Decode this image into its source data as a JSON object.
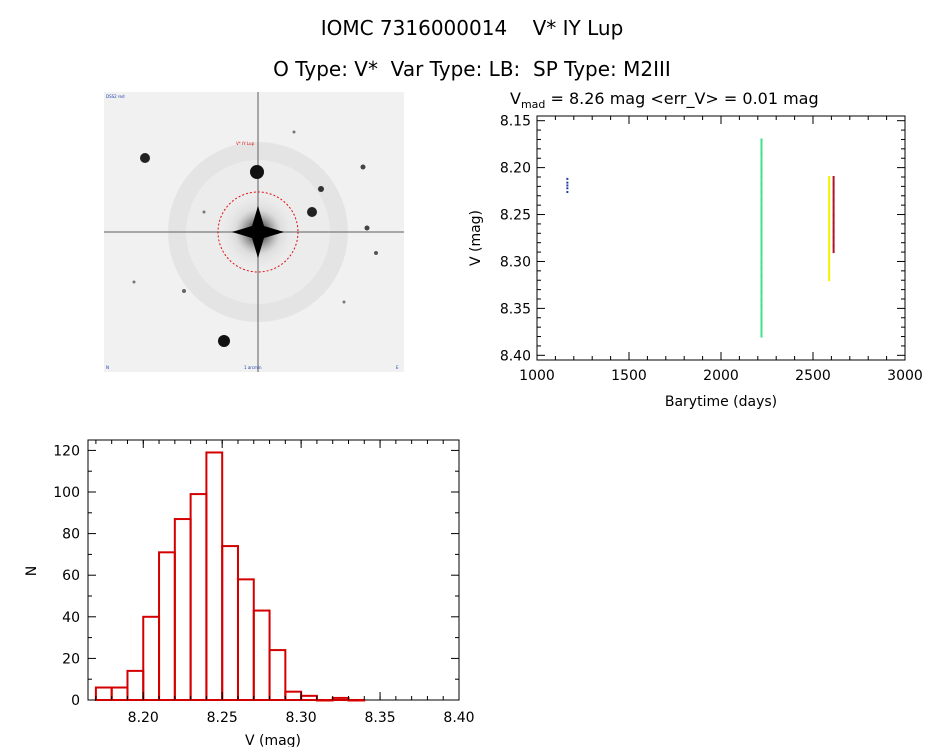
{
  "header": {
    "title_line1": "IOMC 7316000014    V* IY Lup",
    "title_line2": "O Type: V*  Var Type: LB:  SP Type: M2III"
  },
  "image_panel": {
    "label_top_left": "DSS2 red",
    "marker_label": "V* IY Lup",
    "label_bottom_left": "N",
    "label_bottom_center": "1 arcmin",
    "label_bottom_right": "E"
  },
  "lightcurve": {
    "title_prefix": "V",
    "title_sub": "mad",
    "title_rest": " = 8.26 mag <err_V> = 0.01 mag",
    "xlabel": "Barytime (days)",
    "ylabel": "V (mag)",
    "x_ticks": [
      "1000",
      "1500",
      "2000",
      "2500",
      "3000"
    ],
    "y_ticks": [
      "8.15",
      "8.20",
      "8.25",
      "8.30",
      "8.35",
      "8.40"
    ]
  },
  "histogram": {
    "xlabel": "V (mag)",
    "ylabel": "N",
    "x_ticks": [
      "8.20",
      "8.25",
      "8.30",
      "8.35",
      "8.40"
    ],
    "y_ticks": [
      "0",
      "20",
      "40",
      "60",
      "80",
      "100",
      "120"
    ]
  },
  "colors": {
    "axis": "#000000",
    "hist_bar": "#d40000",
    "marker_circle": "#e01010",
    "series_blue": "#1f3fa8",
    "series_green": "#3ce08a",
    "series_yellow": "#f2f200",
    "series_red": "#b01020"
  },
  "chart_data": [
    {
      "type": "scatter",
      "title": "Vmad = 8.26 mag <err_V> = 0.01 mag",
      "xlabel": "Barytime (days)",
      "ylabel": "V (mag)",
      "xlim": [
        1000,
        3000
      ],
      "ylim": [
        8.4,
        8.15
      ],
      "y_inverted": true,
      "grid": false,
      "series": [
        {
          "color": "#1f3fa8",
          "x": 1165,
          "y": [
            8.212,
            8.216,
            8.219,
            8.222,
            8.226
          ]
        },
        {
          "color": "#3ce08a",
          "x": 2220,
          "y_range": [
            8.17,
            8.38
          ]
        },
        {
          "color": "#f2f200",
          "x": 2588,
          "y_range": [
            8.21,
            8.32
          ]
        },
        {
          "color": "#b01020",
          "x": 2612,
          "y_range": [
            8.21,
            8.29
          ]
        }
      ]
    },
    {
      "type": "bar",
      "histogram": true,
      "xlabel": "V (mag)",
      "ylabel": "N",
      "xlim": [
        8.165,
        8.4
      ],
      "ylim": [
        0,
        125
      ],
      "bin_width": 0.01,
      "bins": [
        {
          "x0": 8.175,
          "count": 6
        },
        {
          "x0": 8.185,
          "count": 6
        },
        {
          "x0": 8.195,
          "count": 14
        },
        {
          "x0": 8.205,
          "count": 40
        },
        {
          "x0": 8.215,
          "count": 71
        },
        {
          "x0": 8.225,
          "count": 87
        },
        {
          "x0": 8.235,
          "count": 99
        },
        {
          "x0": 8.245,
          "count": 119
        },
        {
          "x0": 8.255,
          "count": 74
        },
        {
          "x0": 8.265,
          "count": 58
        },
        {
          "x0": 8.275,
          "count": 43
        },
        {
          "x0": 8.285,
          "count": 24
        },
        {
          "x0": 8.295,
          "count": 4
        },
        {
          "x0": 8.305,
          "count": 2
        },
        {
          "x0": 8.315,
          "count": 0
        },
        {
          "x0": 8.325,
          "count": 1
        },
        {
          "x0": 8.335,
          "count": 0
        }
      ]
    }
  ]
}
